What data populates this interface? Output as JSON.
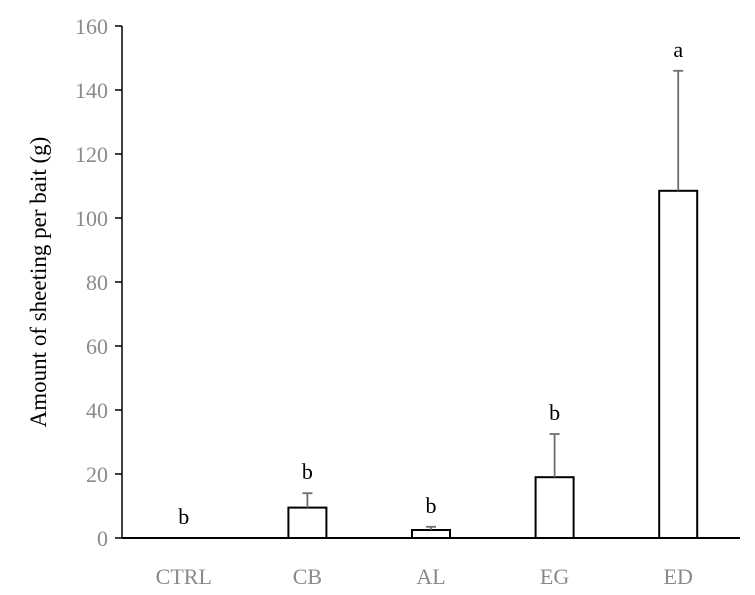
{
  "chart_data": {
    "type": "bar",
    "title": "",
    "xlabel": "",
    "ylabel": "Amount of sheeting per bait (g)",
    "ylim": [
      0,
      160
    ],
    "yticks": [
      0,
      20,
      40,
      60,
      80,
      100,
      120,
      140,
      160
    ],
    "grid": false,
    "categories": [
      "CTRL",
      "CB",
      "AL",
      "EG",
      "ED"
    ],
    "values": [
      0,
      9.5,
      2.5,
      19,
      108.5
    ],
    "error_upper": [
      0,
      4.5,
      1,
      13.5,
      37.5
    ],
    "significance_labels": [
      "b",
      "b",
      "b",
      "b",
      "a"
    ],
    "colors": {
      "bar_fill": "#ffffff",
      "bar_stroke": "#000000",
      "axis": "#000000",
      "error_bar": "#6e6e6e",
      "tick_text": "#8a8a8a"
    }
  }
}
